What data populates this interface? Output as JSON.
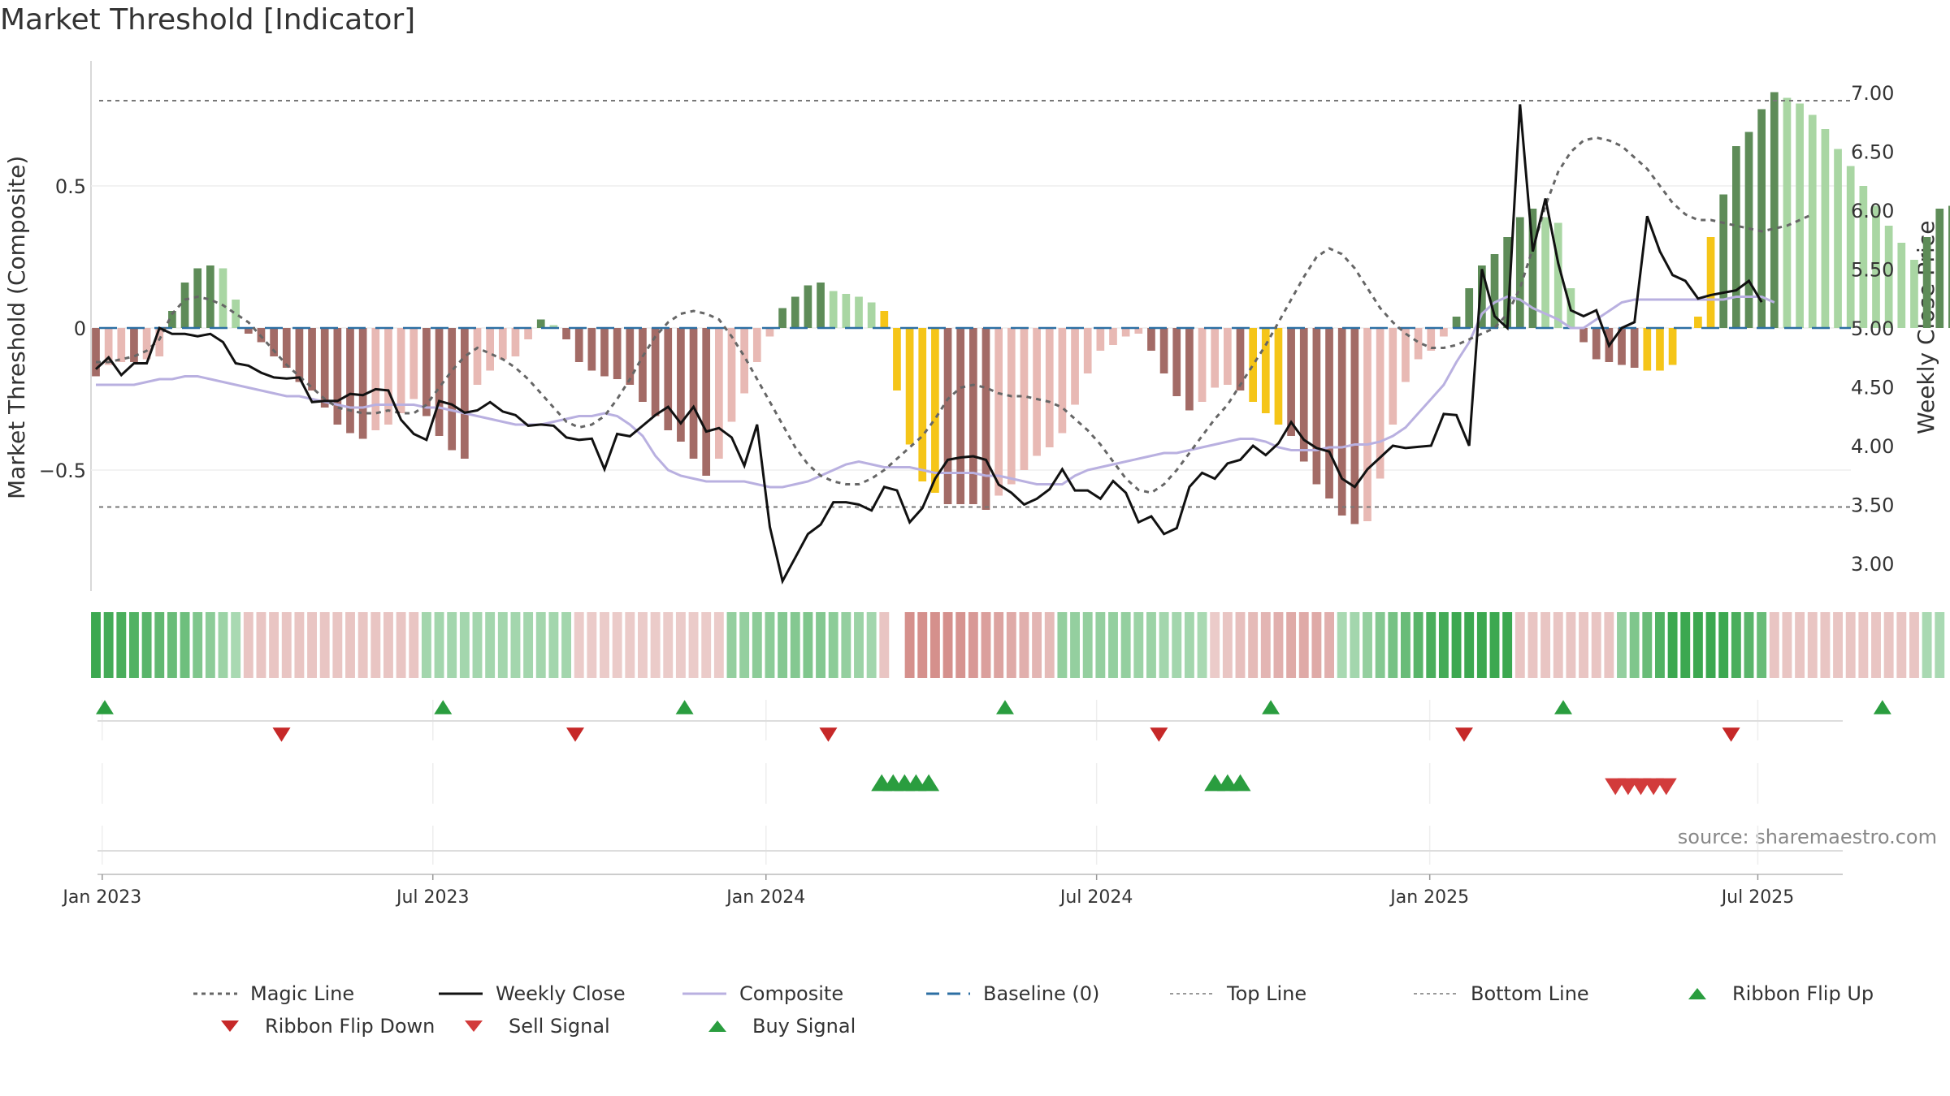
{
  "title": "Market Threshold [Indicator]",
  "source": "source: sharemaestro.com",
  "colors": {
    "dark_green": "#5e8c58",
    "light_green": "#a9d6a3",
    "dark_red": "#a36b66",
    "light_red": "#e8b9b4",
    "gold": "#f5c518",
    "weekly_close": "#111111",
    "composite": "#b9b0e0",
    "magic": "#666666",
    "baseline": "#2c6fa3",
    "buy": "#2a9d3f",
    "sell": "#d23b3b",
    "flip_down": "#c62828"
  },
  "chart_data": {
    "type": "bar",
    "title": "Market Threshold [Indicator]",
    "ylabel": "Market Threshold (Composite)",
    "y2label": "Weekly Close Price",
    "ylim": [
      -0.92,
      0.92
    ],
    "y2lim": [
      2.6,
      7.25
    ],
    "yticks": [
      {
        "v": 0.5,
        "label": "0.5"
      },
      {
        "v": 0,
        "label": "0"
      },
      {
        "v": -0.5,
        "label": "−0.5"
      }
    ],
    "y2ticks": [
      {
        "v": 7.0,
        "label": "7.00"
      },
      {
        "v": 6.5,
        "label": "6.50"
      },
      {
        "v": 6.0,
        "label": "6.00"
      },
      {
        "v": 5.5,
        "label": "5.50"
      },
      {
        "v": 5.0,
        "label": "5.00"
      },
      {
        "v": 4.5,
        "label": "4.50"
      },
      {
        "v": 4.0,
        "label": "4.00"
      },
      {
        "v": 3.5,
        "label": "3.50"
      },
      {
        "v": 3.0,
        "label": "3.00"
      }
    ],
    "xticks": [
      {
        "week": 0.5,
        "label": "Jan 2023"
      },
      {
        "week": 26.5,
        "label": "Jul 2023"
      },
      {
        "week": 52.7,
        "label": "Jan 2024"
      },
      {
        "week": 78.7,
        "label": "Jul 2024"
      },
      {
        "week": 104.9,
        "label": "Jan 2025"
      },
      {
        "week": 130.7,
        "label": "Jul 2025"
      }
    ],
    "top_line": 0.8,
    "bottom_line": -0.63,
    "histogram": [
      -0.17,
      -0.13,
      -0.12,
      -0.12,
      -0.11,
      -0.1,
      0.06,
      0.16,
      0.21,
      0.22,
      0.21,
      0.1,
      -0.02,
      -0.05,
      -0.1,
      -0.14,
      -0.19,
      -0.22,
      -0.28,
      -0.34,
      -0.37,
      -0.39,
      -0.36,
      -0.34,
      -0.3,
      -0.25,
      -0.31,
      -0.38,
      -0.43,
      -0.46,
      -0.2,
      -0.15,
      -0.11,
      -0.1,
      -0.04,
      0.03,
      0.01,
      -0.04,
      -0.12,
      -0.15,
      -0.17,
      -0.18,
      -0.2,
      -0.26,
      -0.31,
      -0.36,
      -0.4,
      -0.46,
      -0.52,
      -0.46,
      -0.33,
      -0.23,
      -0.12,
      -0.03,
      0.07,
      0.11,
      0.15,
      0.16,
      0.13,
      0.12,
      0.11,
      0.09,
      0.06,
      -0.22,
      -0.41,
      -0.54,
      -0.58,
      -0.62,
      -0.62,
      -0.62,
      -0.64,
      -0.59,
      -0.55,
      -0.5,
      -0.45,
      -0.42,
      -0.37,
      -0.27,
      -0.16,
      -0.08,
      -0.06,
      -0.03,
      -0.02,
      -0.08,
      -0.16,
      -0.24,
      -0.29,
      -0.26,
      -0.21,
      -0.2,
      -0.22,
      -0.26,
      -0.3,
      -0.34,
      -0.38,
      -0.47,
      -0.55,
      -0.6,
      -0.66,
      -0.69,
      -0.68,
      -0.53,
      -0.34,
      -0.19,
      -0.11,
      -0.08,
      -0.03,
      0.04,
      0.14,
      0.22,
      0.26,
      0.32,
      0.39,
      0.42,
      0.39,
      0.37,
      0.14,
      -0.05,
      -0.11,
      -0.12,
      -0.13,
      -0.14,
      -0.15,
      -0.15,
      -0.13,
      0.0,
      0.04,
      0.32,
      0.47,
      0.64,
      0.69,
      0.77,
      0.83,
      0.81,
      0.79,
      0.75,
      0.7,
      0.63,
      0.57,
      0.5,
      0.43,
      0.36,
      0.3,
      0.24,
      0.32,
      0.42,
      0.43,
      0.4,
      0.34,
      0.36,
      0.38,
      0.34,
      0.35,
      0.44,
      0.46,
      0.47,
      0.45,
      0.38
    ],
    "gold_weeks": [
      [
        62,
        66
      ],
      [
        91,
        93
      ],
      [
        122,
        127
      ]
    ],
    "weekly_close": [
      4.65,
      4.75,
      4.6,
      4.7,
      4.7,
      5.0,
      4.95,
      4.95,
      4.93,
      4.95,
      4.88,
      4.7,
      4.68,
      4.62,
      4.58,
      4.57,
      4.58,
      4.37,
      4.38,
      4.38,
      4.44,
      4.43,
      4.48,
      4.47,
      4.22,
      4.1,
      4.05,
      4.38,
      4.35,
      4.28,
      4.3,
      4.37,
      4.29,
      4.26,
      4.17,
      4.18,
      4.17,
      4.07,
      4.05,
      4.06,
      3.8,
      4.1,
      4.08,
      4.17,
      4.26,
      4.33,
      4.19,
      4.33,
      4.12,
      4.15,
      4.07,
      3.83,
      4.18,
      3.31,
      2.85,
      3.05,
      3.25,
      3.33,
      3.52,
      3.52,
      3.5,
      3.45,
      3.65,
      3.62,
      3.35,
      3.47,
      3.72,
      3.88,
      3.9,
      3.91,
      3.88,
      3.67,
      3.6,
      3.5,
      3.55,
      3.63,
      3.8,
      3.62,
      3.62,
      3.55,
      3.7,
      3.6,
      3.35,
      3.4,
      3.25,
      3.3,
      3.65,
      3.77,
      3.72,
      3.85,
      3.88,
      4.0,
      3.92,
      4.02,
      4.2,
      4.05,
      3.98,
      3.95,
      3.72,
      3.65,
      3.8,
      3.9,
      4.0,
      3.98,
      3.99,
      4.0,
      4.27,
      4.26,
      4.0,
      5.5,
      5.1,
      5.0,
      6.9,
      5.65,
      6.1,
      5.55,
      5.15,
      5.1,
      5.15,
      4.85,
      5.0,
      5.05,
      5.95,
      5.65,
      5.45,
      5.4,
      5.25,
      5.28,
      5.3,
      5.32,
      5.4,
      5.22
    ],
    "composite": [
      -0.2,
      -0.2,
      -0.2,
      -0.2,
      -0.19,
      -0.18,
      -0.18,
      -0.17,
      -0.17,
      -0.18,
      -0.19,
      -0.2,
      -0.21,
      -0.22,
      -0.23,
      -0.24,
      -0.24,
      -0.25,
      -0.26,
      -0.27,
      -0.28,
      -0.28,
      -0.27,
      -0.27,
      -0.27,
      -0.27,
      -0.28,
      -0.28,
      -0.29,
      -0.3,
      -0.31,
      -0.32,
      -0.33,
      -0.34,
      -0.34,
      -0.34,
      -0.33,
      -0.32,
      -0.31,
      -0.31,
      -0.3,
      -0.31,
      -0.34,
      -0.38,
      -0.45,
      -0.5,
      -0.52,
      -0.53,
      -0.54,
      -0.54,
      -0.54,
      -0.54,
      -0.55,
      -0.56,
      -0.56,
      -0.55,
      -0.54,
      -0.52,
      -0.5,
      -0.48,
      -0.47,
      -0.48,
      -0.49,
      -0.49,
      -0.49,
      -0.5,
      -0.51,
      -0.51,
      -0.51,
      -0.51,
      -0.52,
      -0.52,
      -0.53,
      -0.54,
      -0.55,
      -0.55,
      -0.55,
      -0.52,
      -0.5,
      -0.49,
      -0.48,
      -0.47,
      -0.46,
      -0.45,
      -0.44,
      -0.44,
      -0.43,
      -0.42,
      -0.41,
      -0.4,
      -0.39,
      -0.39,
      -0.4,
      -0.42,
      -0.43,
      -0.43,
      -0.43,
      -0.42,
      -0.42,
      -0.41,
      -0.41,
      -0.4,
      -0.38,
      -0.35,
      -0.3,
      -0.25,
      -0.2,
      -0.12,
      -0.05,
      0.05,
      0.09,
      0.11,
      0.1,
      0.07,
      0.05,
      0.03,
      0.0,
      0.0,
      0.03,
      0.06,
      0.09,
      0.1,
      0.1,
      0.1,
      0.1,
      0.1,
      0.1,
      0.1,
      0.1,
      0.11,
      0.11,
      0.11,
      0.09
    ],
    "magic_line": [
      -0.12,
      -0.12,
      -0.11,
      -0.1,
      -0.08,
      -0.04,
      0.05,
      0.1,
      0.11,
      0.1,
      0.08,
      0.05,
      0.02,
      -0.03,
      -0.08,
      -0.13,
      -0.17,
      -0.21,
      -0.25,
      -0.28,
      -0.29,
      -0.3,
      -0.3,
      -0.29,
      -0.3,
      -0.3,
      -0.27,
      -0.21,
      -0.15,
      -0.1,
      -0.07,
      -0.09,
      -0.11,
      -0.14,
      -0.18,
      -0.23,
      -0.28,
      -0.33,
      -0.35,
      -0.34,
      -0.31,
      -0.25,
      -0.18,
      -0.1,
      -0.03,
      0.02,
      0.05,
      0.06,
      0.05,
      0.03,
      -0.03,
      -0.1,
      -0.18,
      -0.26,
      -0.34,
      -0.42,
      -0.48,
      -0.52,
      -0.54,
      -0.55,
      -0.55,
      -0.53,
      -0.5,
      -0.46,
      -0.42,
      -0.38,
      -0.32,
      -0.25,
      -0.21,
      -0.2,
      -0.21,
      -0.23,
      -0.24,
      -0.24,
      -0.25,
      -0.26,
      -0.28,
      -0.32,
      -0.36,
      -0.41,
      -0.47,
      -0.53,
      -0.57,
      -0.58,
      -0.55,
      -0.5,
      -0.44,
      -0.38,
      -0.32,
      -0.27,
      -0.2,
      -0.13,
      -0.06,
      0.02,
      0.1,
      0.18,
      0.25,
      0.28,
      0.26,
      0.21,
      0.14,
      0.07,
      0.02,
      -0.02,
      -0.05,
      -0.07,
      -0.07,
      -0.06,
      -0.04,
      -0.02,
      0.0,
      0.05,
      0.14,
      0.28,
      0.43,
      0.55,
      0.62,
      0.66,
      0.67,
      0.66,
      0.64,
      0.6,
      0.56,
      0.5,
      0.44,
      0.4,
      0.38,
      0.38,
      0.37,
      0.36,
      0.35,
      0.34,
      0.35,
      0.36,
      0.38,
      0.4
    ],
    "ribbon": [
      1,
      0.95,
      0.9,
      0.85,
      0.8,
      0.75,
      0.7,
      0.65,
      0.55,
      0.45,
      0.35,
      0.25,
      -0.2,
      -0.2,
      -0.2,
      -0.2,
      -0.2,
      -0.2,
      -0.2,
      -0.2,
      -0.2,
      -0.2,
      -0.2,
      -0.2,
      -0.2,
      -0.2,
      0.3,
      0.3,
      0.3,
      0.3,
      0.3,
      0.3,
      0.3,
      0.3,
      0.3,
      0.3,
      0.3,
      0.3,
      -0.15,
      -0.15,
      -0.15,
      -0.15,
      -0.15,
      -0.15,
      -0.15,
      -0.15,
      -0.15,
      -0.15,
      -0.15,
      -0.15,
      0.4,
      0.4,
      0.45,
      0.45,
      0.5,
      0.5,
      0.55,
      0.5,
      0.45,
      0.4,
      0.35,
      0.3,
      -0.2,
      null,
      -0.7,
      -0.7,
      -0.7,
      -0.7,
      -0.65,
      -0.6,
      -0.55,
      -0.5,
      -0.45,
      -0.4,
      -0.35,
      -0.3,
      0.4,
      0.4,
      0.4,
      0.4,
      0.4,
      0.4,
      0.35,
      0.35,
      0.3,
      0.3,
      0.3,
      0.25,
      -0.15,
      -0.2,
      -0.25,
      -0.3,
      -0.35,
      -0.4,
      -0.45,
      -0.45,
      -0.45,
      -0.4,
      0.25,
      0.3,
      0.4,
      0.5,
      0.6,
      0.7,
      0.8,
      0.9,
      0.95,
      1,
      1,
      1,
      1,
      1,
      -0.2,
      -0.2,
      -0.2,
      -0.2,
      -0.2,
      -0.2,
      -0.2,
      -0.2,
      0.4,
      0.55,
      0.7,
      0.85,
      1,
      1,
      1,
      1,
      1,
      0.9,
      0.8,
      0.7,
      -0.2,
      -0.2,
      -0.2,
      -0.2,
      -0.2,
      -0.2,
      -0.2,
      -0.2,
      -0.2,
      -0.2,
      -0.2,
      -0.2,
      0.25,
      0.25
    ],
    "ribbon_flip_up_weeks": [
      0.7,
      27.3,
      46.3,
      71.5,
      92.4,
      115.4,
      140.5
    ],
    "ribbon_flip_down_weeks": [
      14.6,
      37.7,
      57.6,
      83.6,
      107.6,
      128.6
    ],
    "buy_signal_weeks": [
      61.8,
      62.7,
      63.6,
      64.5,
      65.5,
      88.0,
      89.0,
      90.0
    ],
    "sell_signal_weeks": [
      119.5,
      120.5,
      121.5,
      122.5,
      123.5
    ],
    "legend": [
      {
        "key": "magic",
        "label": "Magic Line"
      },
      {
        "key": "close",
        "label": "Weekly Close"
      },
      {
        "key": "composite",
        "label": "Composite"
      },
      {
        "key": "baseline",
        "label": "Baseline (0)"
      },
      {
        "key": "top",
        "label": "Top Line"
      },
      {
        "key": "bottom",
        "label": "Bottom Line"
      },
      {
        "key": "flipup",
        "label": "Ribbon Flip Up"
      },
      {
        "key": "flipdown",
        "label": "Ribbon Flip Down"
      },
      {
        "key": "sell",
        "label": "Sell Signal"
      },
      {
        "key": "buy",
        "label": "Buy Signal"
      }
    ]
  }
}
